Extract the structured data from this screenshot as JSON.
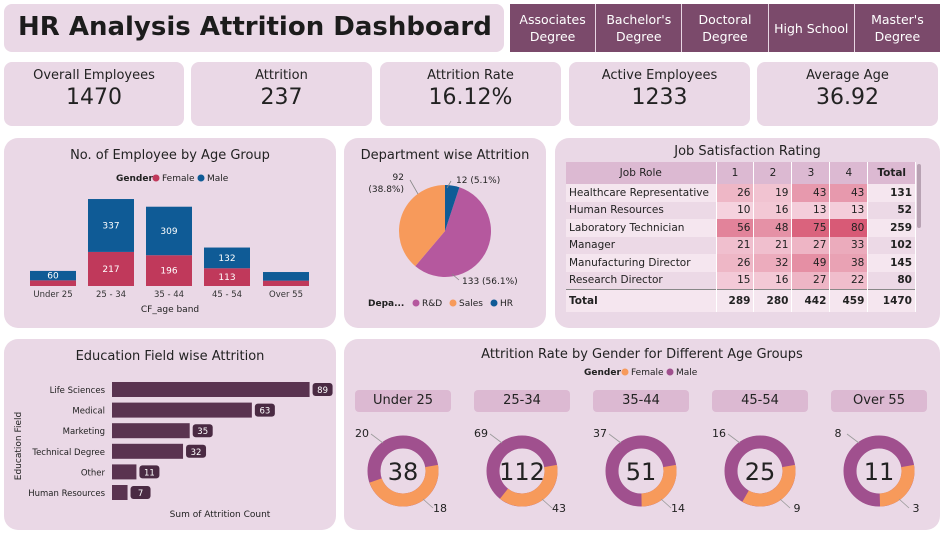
{
  "header": {
    "title": "HR Analysis Attrition Dashboard"
  },
  "education_slicer": [
    "Associates Degree",
    "Bachelor's Degree",
    "Doctoral Degree",
    "High School",
    "Master's Degree"
  ],
  "kpis": [
    {
      "label": "Overall Employees",
      "value": "1470"
    },
    {
      "label": "Attrition",
      "value": "237"
    },
    {
      "label": "Attrition Rate",
      "value": "16.12%"
    },
    {
      "label": "Active Employees",
      "value": "1233"
    },
    {
      "label": "Average Age",
      "value": "36.92"
    }
  ],
  "age_chart": {
    "title": "No. of Employee by Age Group",
    "legend_title": "Gender",
    "legend": [
      "Female",
      "Male"
    ],
    "xlabel": "CF_age band",
    "colors": {
      "female": "#c0395b",
      "male": "#0f5b96"
    }
  },
  "dept_chart": {
    "title": "Department wise Attrition",
    "legend_title": "Depa...",
    "legend": [
      "R&D",
      "Sales",
      "HR"
    ],
    "labels": [
      "133 (56.1%)",
      "92 (38.8%)",
      "12 (5.1%)"
    ],
    "colors": {
      "rd": "#b5589e",
      "sales": "#f79a5b",
      "hr": "#0f5b96"
    }
  },
  "job_sat": {
    "title": "Job Satisfaction Rating",
    "headers": [
      "Job Role",
      "1",
      "2",
      "3",
      "4",
      "Total"
    ],
    "rows": [
      {
        "role": "Healthcare Representative",
        "v": [
          26,
          19,
          43,
          43
        ],
        "total": 131
      },
      {
        "role": "Human Resources",
        "v": [
          10,
          16,
          13,
          13
        ],
        "total": 52
      },
      {
        "role": "Laboratory Technician",
        "v": [
          56,
          48,
          75,
          80
        ],
        "total": 259
      },
      {
        "role": "Manager",
        "v": [
          21,
          21,
          27,
          33
        ],
        "total": 102
      },
      {
        "role": "Manufacturing Director",
        "v": [
          26,
          32,
          49,
          38
        ],
        "total": 145
      },
      {
        "role": "Research Director",
        "v": [
          15,
          16,
          27,
          22
        ],
        "total": 80
      }
    ],
    "total_label": "Total",
    "totals": [
      289,
      280,
      442,
      459,
      1470
    ]
  },
  "edu_chart": {
    "title": "Education Field wise Attrition",
    "ylabel": "Education Field",
    "xlabel": "Sum of Attrition Count",
    "bar_color": "#5a3350"
  },
  "gender_age": {
    "title": "Attrition Rate by Gender for Different Age Groups",
    "legend_title": "Gender",
    "legend": [
      "Female",
      "Male"
    ],
    "colors": {
      "female": "#f79a5b",
      "male": "#a0508e"
    },
    "groups": [
      {
        "label": "Under 25",
        "total": "38",
        "male": 20,
        "female": 18
      },
      {
        "label": "25-34",
        "total": "112",
        "male": 69,
        "female": 43
      },
      {
        "label": "35-44",
        "total": "51",
        "male": 37,
        "female": 14
      },
      {
        "label": "45-54",
        "total": "25",
        "male": 16,
        "female": 9
      },
      {
        "label": "Over 55",
        "total": "11",
        "male": 8,
        "female": 3
      }
    ]
  },
  "chart_data": [
    {
      "type": "bar",
      "title": "No. of Employee by Age Group",
      "categories": [
        "Under 25",
        "25 - 34",
        "35 - 44",
        "45 - 54",
        "Over 55"
      ],
      "series": [
        {
          "name": "Female",
          "values": [
            36,
            217,
            196,
            113,
            34
          ]
        },
        {
          "name": "Male",
          "values": [
            60,
            337,
            309,
            132,
            55
          ]
        }
      ],
      "data_labels": {
        "Female": [
          "",
          "217",
          "196",
          "113",
          ""
        ],
        "Male": [
          "60",
          "337",
          "309",
          "132",
          ""
        ]
      },
      "xlabel": "CF_age band",
      "stacked": true
    },
    {
      "type": "pie",
      "title": "Department wise Attrition",
      "categories": [
        "R&D",
        "Sales",
        "HR"
      ],
      "values": [
        133,
        92,
        12
      ]
    },
    {
      "type": "bar",
      "orientation": "horizontal",
      "title": "Education Field wise Attrition",
      "categories": [
        "Life Sciences",
        "Medical",
        "Marketing",
        "Technical Degree",
        "Other",
        "Human Resources"
      ],
      "values": [
        89,
        63,
        35,
        32,
        11,
        7
      ],
      "xlabel": "Sum of Attrition Count",
      "ylabel": "Education Field"
    }
  ]
}
